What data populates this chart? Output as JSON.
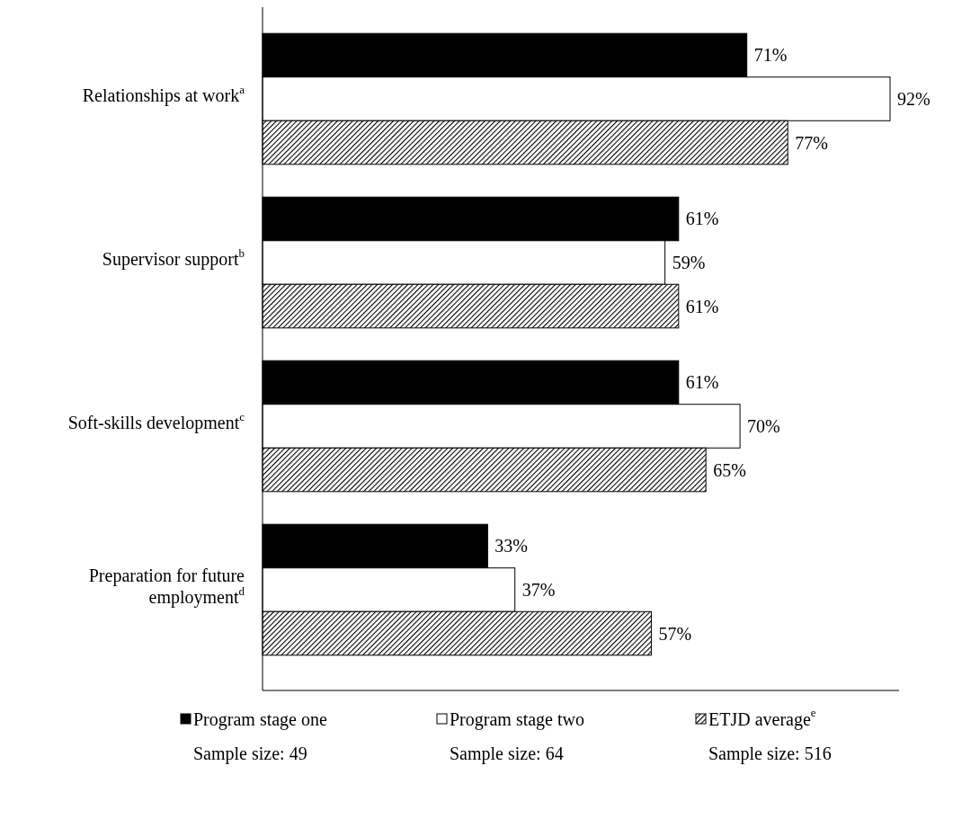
{
  "chart_data": {
    "type": "bar",
    "orientation": "horizontal",
    "categories": [
      "Relationships at work$^{a}$",
      "Supervisor support$^{b}$",
      "Soft-skills development$^{c}$",
      "Preparation for future employment$^{d}$"
    ],
    "series": [
      {
        "name": "Program stage one",
        "color": "#000000",
        "values": [
          71,
          61,
          61,
          33
        ],
        "value_labels": [
          "71%",
          "61%",
          "61%",
          "33%"
        ]
      },
      {
        "name": "Program stage two",
        "color": "#ffffff",
        "values": [
          92,
          59,
          70,
          37
        ],
        "value_labels": [
          "92%",
          "59%",
          "70%",
          "37%"
        ]
      },
      {
        "name": "ETJD average$^{e}$",
        "color": "#000000",
        "values": [
          77,
          61,
          65,
          57
        ],
        "value_labels": [
          "77%",
          "61%",
          "65%",
          "57%"
        ]
      }
    ],
    "legend": "bottom",
    "annotations": [
      "Sample size: 49",
      "Sample size: 64",
      "Sample size: 516"
    ]
  }
}
